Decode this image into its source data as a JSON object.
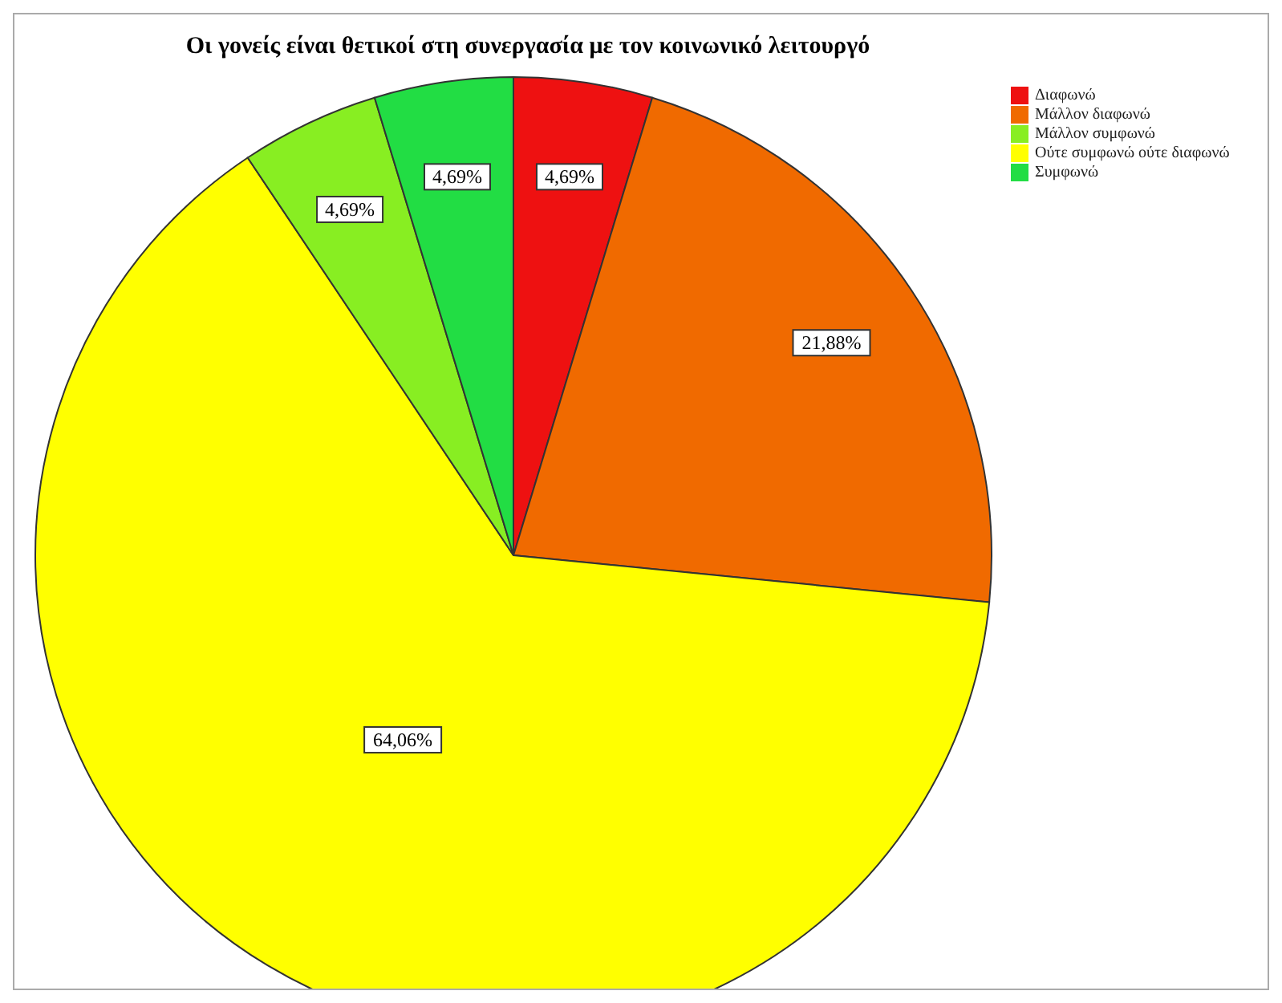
{
  "chart_data": {
    "type": "pie",
    "title": "Οι γονείς είναι θετικοί στη συνεργασία με τον κοινωνικό λειτουργό",
    "categories": [
      "Διαφωνώ",
      "Μάλλον διαφωνώ",
      "Ούτε συμφωνώ ούτε διαφωνώ",
      "Μάλλον συμφωνώ",
      "Συμφωνώ"
    ],
    "values": [
      4.69,
      21.88,
      64.06,
      4.69,
      4.69
    ],
    "value_labels": [
      "4,69%",
      "21,88%",
      "64,06%",
      "4,69%",
      "4,69%"
    ],
    "colors": [
      "#ee1111",
      "#f06a00",
      "#ffff00",
      "#88ee22",
      "#22dd44"
    ],
    "legend": "top right"
  }
}
